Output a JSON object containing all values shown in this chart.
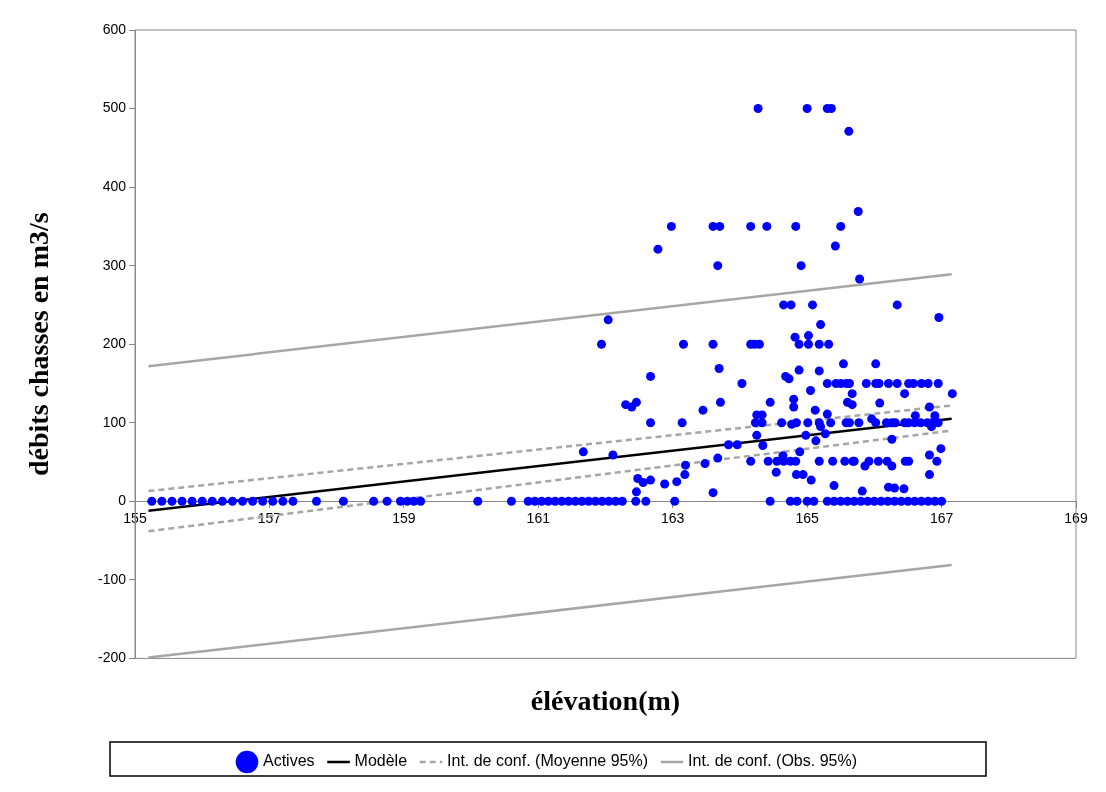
{
  "chart_data": {
    "type": "scatter",
    "xlabel": "élévation(m)",
    "ylabel": "débits chasses en m3/s",
    "xlim": [
      155,
      169
    ],
    "xticks": [
      155,
      157,
      159,
      161,
      163,
      165,
      167,
      169
    ],
    "ylim": [
      -200,
      600
    ],
    "yticks": [
      -200,
      -100,
      0,
      100,
      200,
      300,
      400,
      500,
      600
    ],
    "grid": false,
    "legend": "bottom",
    "marker": "circle",
    "series": [
      {
        "name": "Actives",
        "type": "scatter",
        "color": "#0000ff",
        "x": [
          155.25,
          155.4,
          155.55,
          155.7,
          155.85,
          156.0,
          156.15,
          156.3,
          156.45,
          156.6,
          156.75,
          156.9,
          157.05,
          157.2,
          157.35,
          157.7,
          158.1,
          158.55,
          158.75,
          158.95,
          159.05,
          159.15,
          159.25,
          160.1,
          160.6,
          160.85,
          160.95,
          161.05,
          161.15,
          161.25,
          161.35,
          161.45,
          161.55,
          161.65,
          161.75,
          161.85,
          161.95,
          162.05,
          162.15,
          162.25,
          162.45,
          162.6,
          163.03,
          164.45,
          164.75,
          164.85,
          165.0,
          165.1,
          165.3,
          165.4,
          165.5,
          165.6,
          165.7,
          165.8,
          165.9,
          166.0,
          166.1,
          166.2,
          166.3,
          166.4,
          166.5,
          166.6,
          166.7,
          166.8,
          166.9,
          167.0,
          164.27,
          165.0,
          165.3,
          165.36,
          165.62,
          162.98,
          163.6,
          163.7,
          164.16,
          164.4,
          164.83,
          165.5,
          165.76,
          162.78,
          163.67,
          165.42,
          164.91,
          165.78,
          162.04,
          161.94,
          163.16,
          163.6,
          164.16,
          164.22,
          164.29,
          164.65,
          164.76,
          165.08,
          166.34,
          166.96,
          164.82,
          165.02,
          164.88,
          165.02,
          165.18,
          165.32,
          165.2,
          165.54,
          166.02,
          163.69,
          162.67,
          164.68,
          164.73,
          164.88,
          165.18,
          164.03,
          165.3,
          165.43,
          165.5,
          165.58,
          165.63,
          165.88,
          166.02,
          166.07,
          166.21,
          166.34,
          166.51,
          166.58,
          166.7,
          166.8,
          166.95,
          165.05,
          165.67,
          166.45,
          167.16,
          162.3,
          162.39,
          162.46,
          162.67,
          163.14,
          163.45,
          163.71,
          164.45,
          164.25,
          164.33,
          164.23,
          164.33,
          164.25,
          164.62,
          164.77,
          164.84,
          164.8,
          164.8,
          165.01,
          165.12,
          165.18,
          165.2,
          165.27,
          164.98,
          165.3,
          165.35,
          165.58,
          165.63,
          165.77,
          165.6,
          165.67,
          165.96,
          166.02,
          166.08,
          166.18,
          166.26,
          166.31,
          166.45,
          166.51,
          166.6,
          166.69,
          166.79,
          166.86,
          166.95,
          166.61,
          166.82,
          166.9,
          166.85,
          166.26,
          164.89,
          165.13,
          161.67,
          162.11,
          163.83,
          163.96,
          164.34,
          164.16,
          164.42,
          164.55,
          164.65,
          164.75,
          164.83,
          165.18,
          165.38,
          165.56,
          165.68,
          165.7,
          165.86,
          165.92,
          166.06,
          166.19,
          166.26,
          166.46,
          166.51,
          166.93,
          166.99,
          166.82,
          164.64,
          163.67,
          163.48,
          163.19,
          163.18,
          164.54,
          164.84,
          164.94,
          165.06,
          166.82,
          162.48,
          162.56,
          162.67,
          162.88,
          163.06,
          162.46,
          163.6,
          165.4,
          165.82,
          166.21,
          166.3,
          166.44
        ],
        "values": [
          0,
          0,
          0,
          0,
          0,
          0,
          0,
          0,
          0,
          0,
          0,
          0,
          0,
          0,
          0,
          0,
          0,
          0,
          0,
          0,
          0,
          0,
          0,
          0,
          0,
          0,
          0,
          0,
          0,
          0,
          0,
          0,
          0,
          0,
          0,
          0,
          0,
          0,
          0,
          0,
          0,
          0,
          0,
          0,
          0,
          0,
          0,
          0,
          0,
          0,
          0,
          0,
          0,
          0,
          0,
          0,
          0,
          0,
          0,
          0,
          0,
          0,
          0,
          0,
          0,
          0,
          500,
          500,
          500,
          500,
          471,
          350,
          350,
          350,
          350,
          350,
          350,
          350,
          369,
          321,
          300,
          325,
          300,
          283,
          231,
          200,
          200,
          200,
          200,
          200,
          200,
          250,
          250,
          250,
          250,
          234,
          209,
          211,
          200,
          200,
          200,
          200,
          225,
          175,
          175,
          169,
          159,
          159,
          156,
          167,
          166,
          150,
          150,
          150,
          150,
          150,
          150,
          150,
          150,
          150,
          150,
          150,
          150,
          150,
          150,
          150,
          150,
          141,
          137,
          137,
          137,
          123,
          120,
          126,
          100,
          100,
          116,
          126,
          126,
          110,
          110,
          100,
          100,
          84,
          100,
          98,
          100,
          130,
          120,
          100,
          116,
          100,
          95,
          86,
          84,
          111,
          100,
          100,
          100,
          100,
          126,
          123,
          105,
          100,
          125,
          100,
          100,
          100,
          100,
          100,
          100,
          100,
          100,
          100,
          100,
          109,
          120,
          109,
          95,
          79,
          63,
          77,
          63,
          59,
          72,
          72,
          71,
          51,
          51,
          51,
          51,
          51,
          51,
          51,
          51,
          51,
          51,
          51,
          45,
          51,
          51,
          51,
          45,
          51,
          51,
          51,
          67,
          59,
          58,
          55,
          48,
          46,
          34,
          37,
          34,
          34,
          27,
          34,
          29,
          24,
          27,
          22,
          25,
          12,
          11,
          20,
          13,
          18,
          17,
          16
        ]
      },
      {
        "name": "Modèle",
        "type": "line",
        "color": "#000000",
        "line_style": "solid",
        "marker": "none",
        "x": [
          155.2,
          167.15
        ],
        "values": [
          -12,
          105
        ]
      },
      {
        "name": "Int. de conf. (Moyenne 95%)",
        "type": "line",
        "color": "#a6a6a6",
        "line_style": "dashed",
        "marker": "none",
        "x": [
          155.2,
          167.15
        ],
        "values": [
          13,
          122
        ]
      },
      {
        "type": "line",
        "color": "#a6a6a6",
        "line_style": "dashed",
        "marker": "none",
        "x": [
          155.2,
          167.15
        ],
        "values": [
          -38,
          90
        ]
      },
      {
        "name": "Int. de conf. (Obs. 95%)",
        "type": "line",
        "color": "#a6a6a6",
        "line_style": "solid",
        "marker": "none",
        "x": [
          155.2,
          167.15
        ],
        "values": [
          172,
          289
        ]
      },
      {
        "type": "line",
        "color": "#a6a6a6",
        "line_style": "solid",
        "marker": "none",
        "x": [
          155.2,
          167.15
        ],
        "values": [
          -199,
          -81
        ]
      }
    ]
  }
}
